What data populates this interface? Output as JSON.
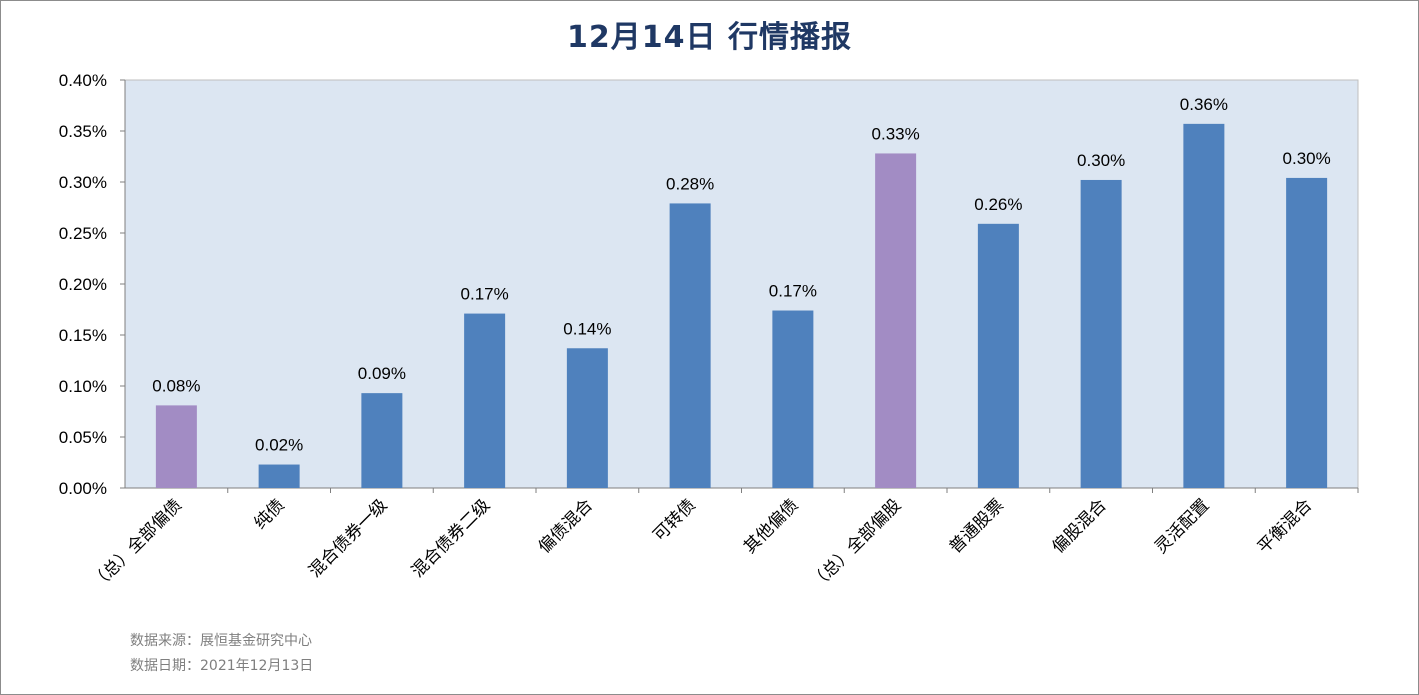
{
  "chart_data": {
    "type": "bar",
    "title": "12月14日  行情播报",
    "categories": [
      "（总）全部偏债",
      "纯债",
      "混合债券一级",
      "混合债券二级",
      "偏债混合",
      "可转债",
      "其他偏债",
      "（总）全部偏股",
      "普通股票",
      "偏股混合",
      "灵活配置",
      "平衡混合"
    ],
    "values": [
      0.08,
      0.02,
      0.09,
      0.17,
      0.14,
      0.28,
      0.17,
      0.33,
      0.26,
      0.3,
      0.36,
      0.3
    ],
    "bar_heights": [
      0.081,
      0.023,
      0.093,
      0.171,
      0.137,
      0.279,
      0.174,
      0.328,
      0.259,
      0.302,
      0.357,
      0.304
    ],
    "data_labels": [
      "0.08%",
      "0.02%",
      "0.09%",
      "0.17%",
      "0.14%",
      "0.28%",
      "0.17%",
      "0.33%",
      "0.26%",
      "0.30%",
      "0.36%",
      "0.30%"
    ],
    "highlight": [
      true,
      false,
      false,
      false,
      false,
      false,
      false,
      true,
      false,
      false,
      false,
      false
    ],
    "ylim": [
      0,
      0.4
    ],
    "yticks": [
      "0.00%",
      "0.05%",
      "0.10%",
      "0.15%",
      "0.20%",
      "0.25%",
      "0.30%",
      "0.35%",
      "0.40%"
    ],
    "xlabel": "",
    "ylabel": "",
    "grid": false,
    "legend": "none",
    "colors": {
      "bar": "#4f81bd",
      "highlight_bar": "#a28cc4",
      "plot_bg": "#dce6f2",
      "axis": "#7f7f7f"
    }
  },
  "source": {
    "line1": "数据来源：展恒基金研究中心",
    "line2": "数据日期：2021年12月13日"
  }
}
